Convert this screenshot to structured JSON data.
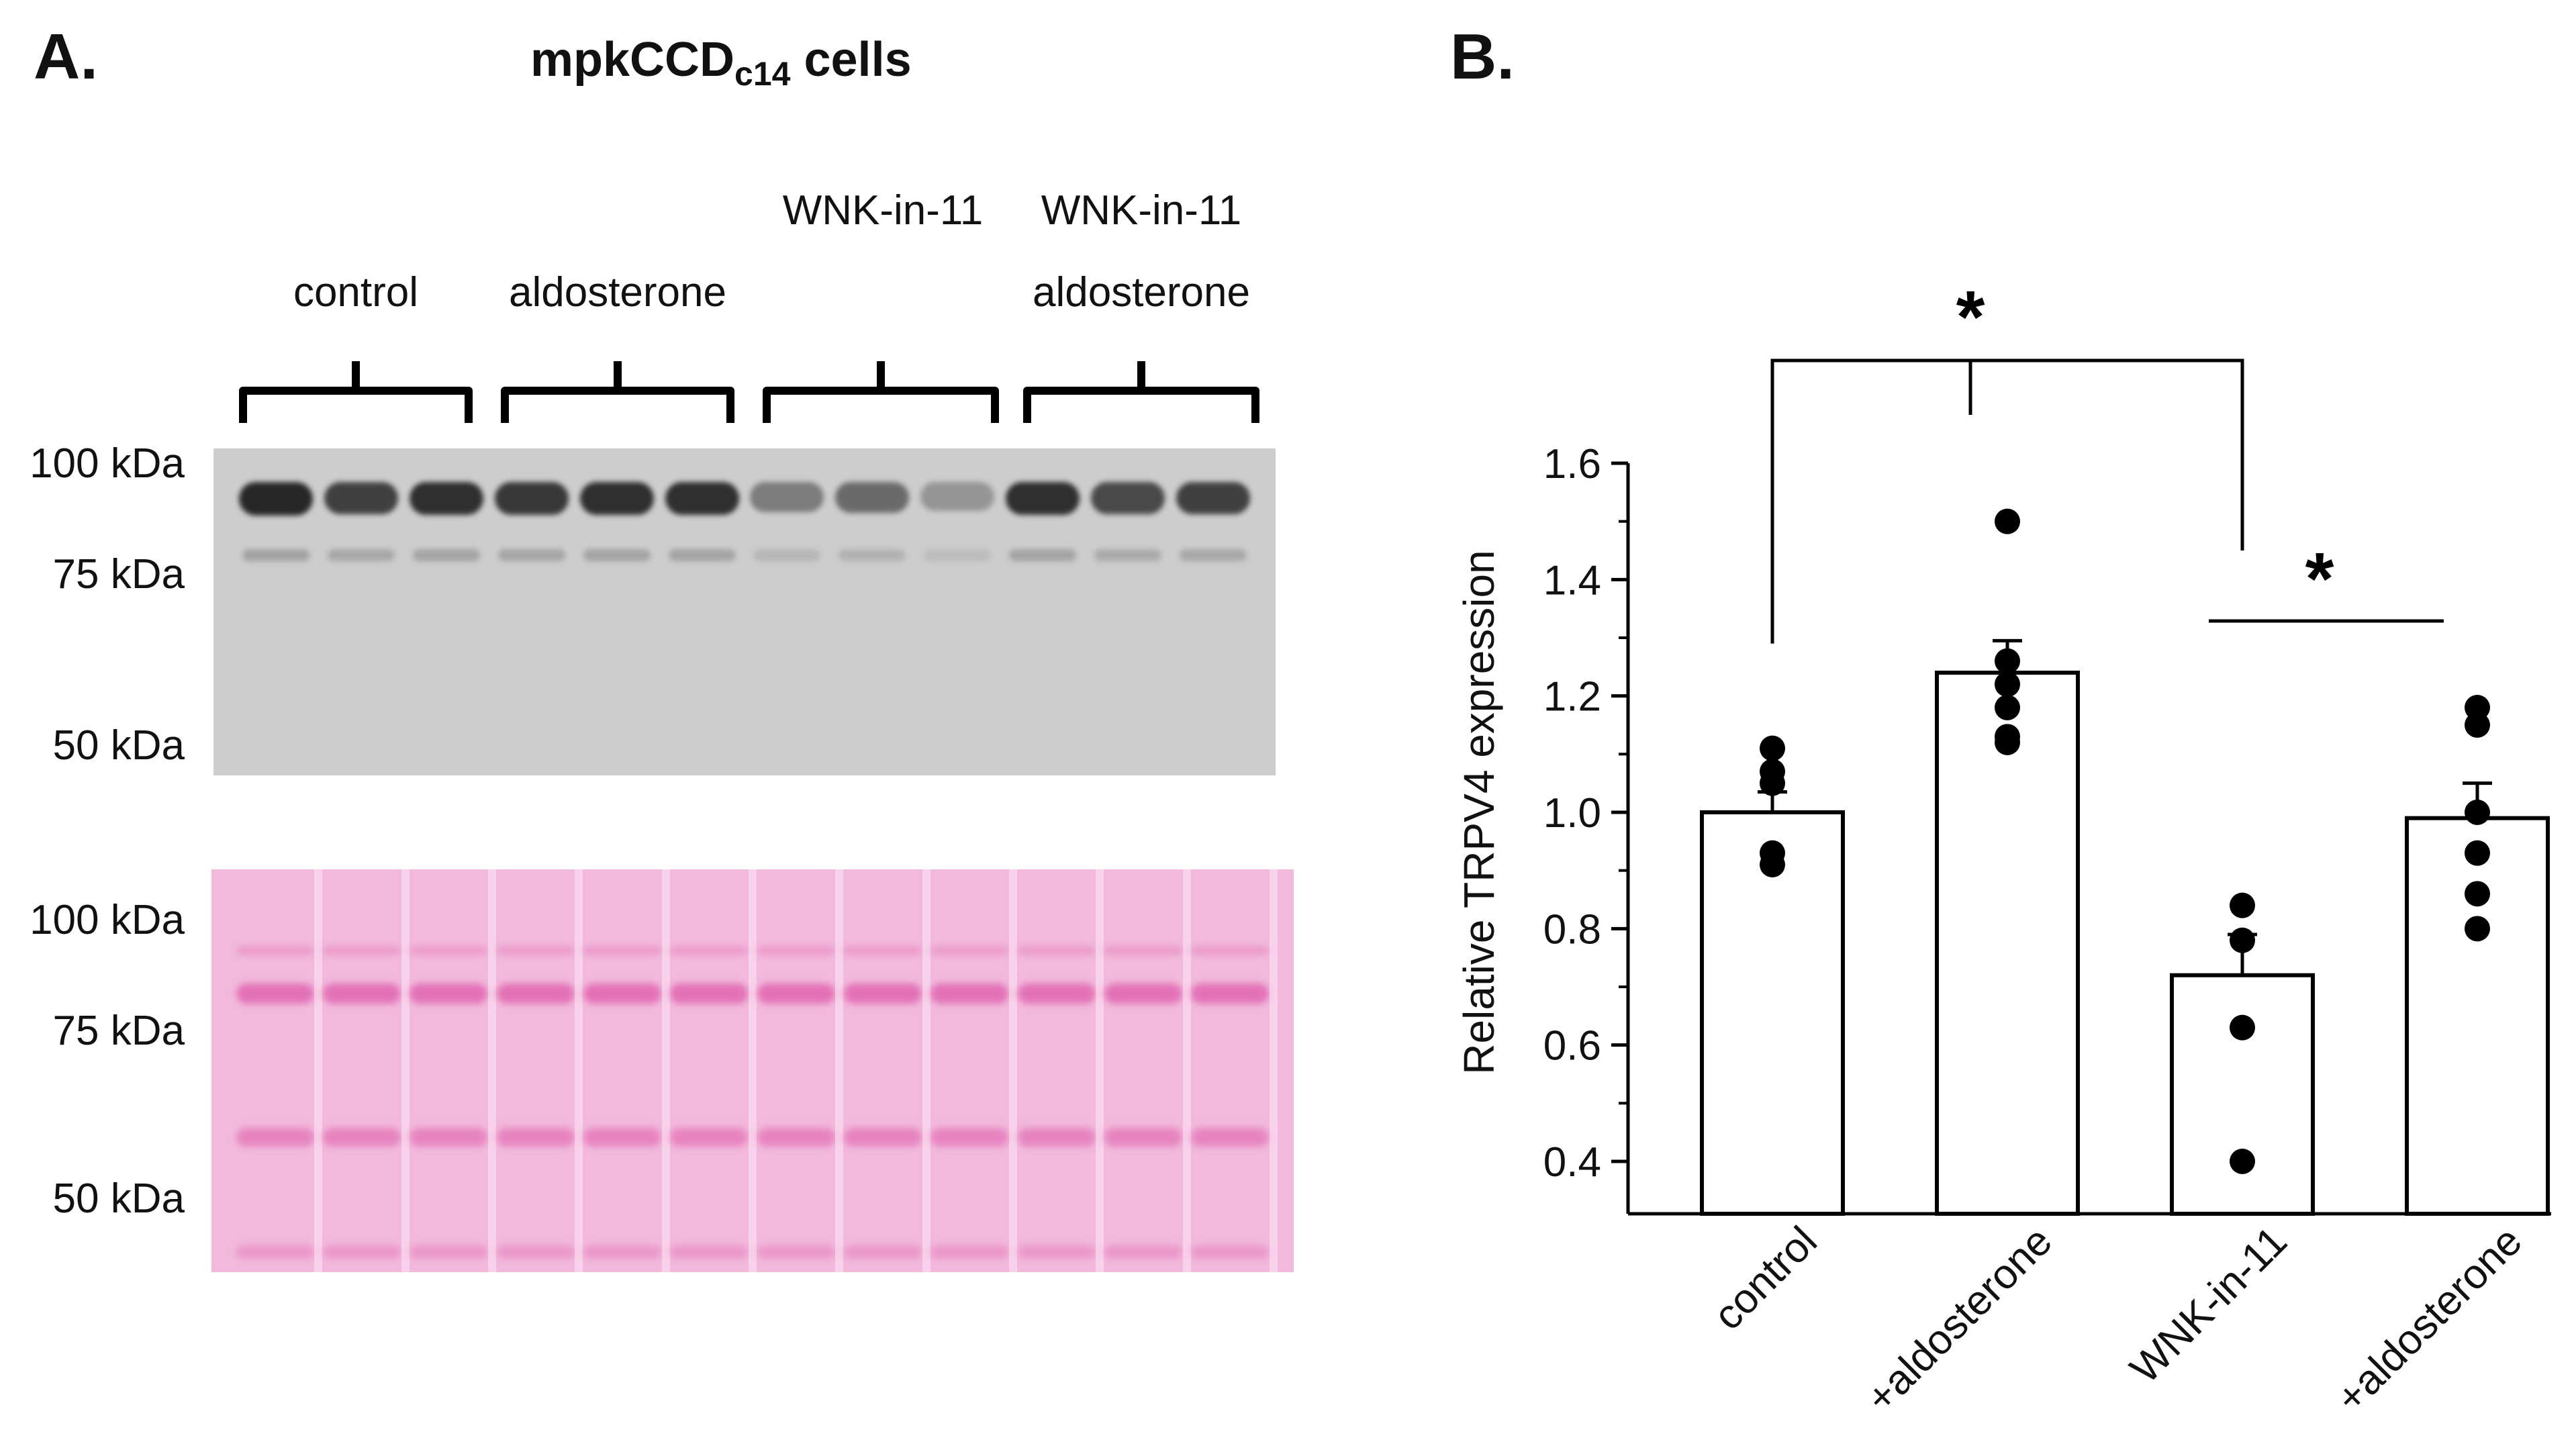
{
  "panel_a": {
    "label": "A.",
    "title_main": "mpkCCD",
    "title_sub": "c14",
    "title_suffix": " cells",
    "groups": [
      {
        "line1": "",
        "line2": "control"
      },
      {
        "line1": "",
        "line2": "aldosterone"
      },
      {
        "line1": "WNK-in-11",
        "line2": ""
      },
      {
        "line1": "WNK-in-11",
        "line2": "aldosterone"
      }
    ],
    "blot_markers": [
      "100 kDa",
      "75 kDa",
      "50 kDa"
    ],
    "ponceau_markers": [
      "100 kDa",
      "75 kDa",
      "50 kDa"
    ],
    "lane_intensity": [
      0.95,
      0.8,
      0.9,
      0.85,
      0.9,
      0.9,
      0.45,
      0.55,
      0.3,
      0.9,
      0.75,
      0.8
    ]
  },
  "panel_b": {
    "label": "B.",
    "significance_mark": "*",
    "chart_data": {
      "type": "bar",
      "categories": [
        "control",
        "+aldosterone",
        "WNK-in-11",
        "+aldosterone"
      ],
      "values": [
        1.0,
        1.24,
        0.72,
        0.99
      ],
      "errors": [
        0.035,
        0.055,
        0.07,
        0.06
      ],
      "points": [
        [
          1.11,
          1.07,
          1.05,
          0.91,
          0.93
        ],
        [
          1.5,
          1.26,
          1.22,
          1.18,
          1.13,
          1.12
        ],
        [
          0.84,
          0.78,
          0.63,
          0.4
        ],
        [
          1.18,
          1.15,
          1.0,
          0.93,
          0.86,
          0.8
        ]
      ],
      "ylabel": "Relative TRPV4 expression",
      "xlabel": "",
      "ylim": [
        0.4,
        1.6
      ],
      "yticks": [
        "1.6",
        "1.4",
        "1.2",
        "1.0",
        "0.8",
        "0.6",
        "0.4"
      ],
      "comparisons": [
        {
          "from": "control",
          "to": "WNK-in-11",
          "mark": "*"
        },
        {
          "from": "WNK-in-11",
          "to": "+aldosterone",
          "mark": "*"
        }
      ],
      "colors": {
        "bar_fill": "#ffffff",
        "bar_edge": "#000000",
        "point": "#000000"
      }
    }
  }
}
